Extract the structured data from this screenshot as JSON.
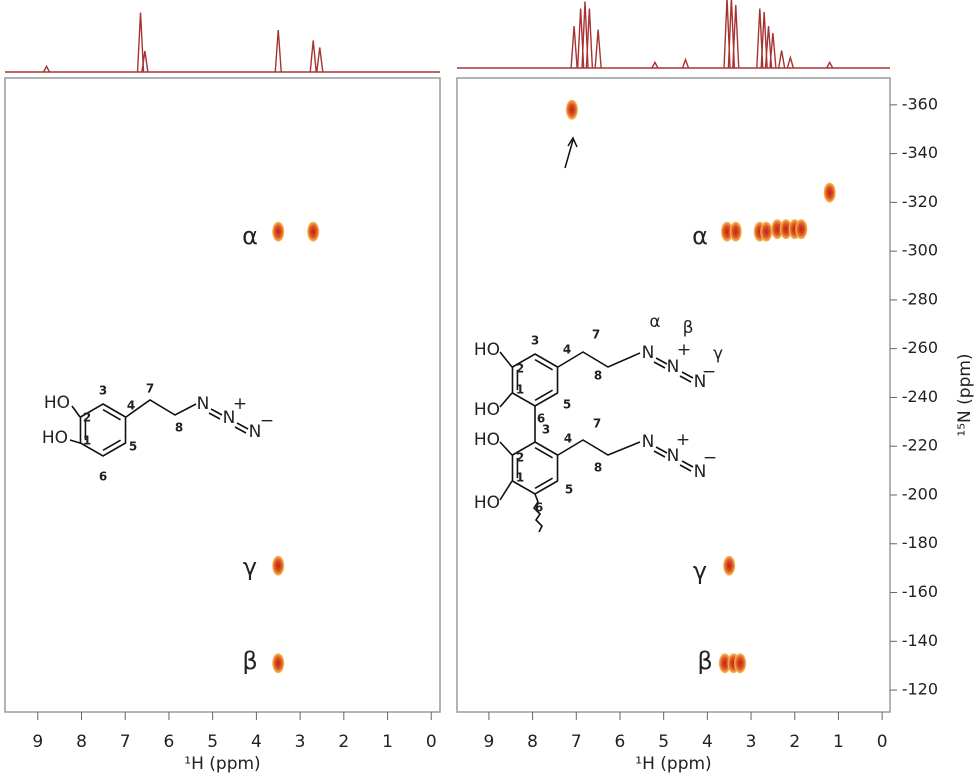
{
  "chart_data": [
    {
      "type": "scatter",
      "xlabel": "¹H (ppm)",
      "xlim": [
        9.75,
        -0.2
      ],
      "xticks": [
        9,
        8,
        7,
        6,
        5,
        4,
        3,
        2,
        1,
        0
      ],
      "ylim": [
        -111,
        -371
      ],
      "x": [
        3.5,
        2.7,
        3.5,
        3.5
      ],
      "y": [
        -308,
        -308,
        -171,
        -131
      ],
      "annotations": [
        "α",
        "γ",
        "β"
      ],
      "projection": {
        "x": [
          8.8,
          6.65,
          6.55,
          3.5,
          2.7,
          2.55
        ],
        "values": [
          8,
          85,
          30,
          60,
          45,
          35
        ]
      },
      "structure": [
        "HO",
        "HO",
        "1",
        "2",
        "3",
        "4",
        "5",
        "6",
        "7",
        "8",
        "N",
        "N",
        "N",
        "+",
        "−"
      ]
    },
    {
      "type": "scatter",
      "xlabel": "¹H (ppm)",
      "ylabel": "¹⁵N (ppm)",
      "xlim": [
        9.73,
        -0.18
      ],
      "xticks": [
        9,
        8,
        7,
        6,
        5,
        4,
        3,
        2,
        1,
        0
      ],
      "ylim": [
        -111,
        -371
      ],
      "yticks": [
        -120,
        -140,
        -160,
        -180,
        -200,
        -220,
        -240,
        -260,
        -280,
        -300,
        -320,
        -340,
        -360
      ],
      "x": [
        7.1,
        3.55,
        3.35,
        2.8,
        2.65,
        2.4,
        2.2,
        2.0,
        1.85,
        1.2,
        3.5,
        3.6,
        3.4,
        3.25
      ],
      "y": [
        -358,
        -308,
        -308,
        -308,
        -308,
        -309,
        -309,
        -309,
        -309,
        -324,
        -171,
        -131,
        -131,
        -131
      ],
      "annotations": [
        "α",
        "γ",
        "β"
      ],
      "projection": {
        "x": [
          7.05,
          6.9,
          6.8,
          6.7,
          6.5,
          5.2,
          4.5,
          3.55,
          3.45,
          3.35,
          2.8,
          2.7,
          2.6,
          2.5,
          2.3,
          2.1,
          1.2
        ],
        "values": [
          60,
          85,
          95,
          85,
          55,
          8,
          12,
          100,
          100,
          90,
          85,
          80,
          60,
          50,
          25,
          15,
          8
        ]
      },
      "structure": [
        "HO",
        "HO",
        "1",
        "2",
        "3",
        "4",
        "5",
        "6",
        "7",
        "8",
        "N",
        "N",
        "N",
        "α",
        "β",
        "+",
        "−",
        "γ",
        "HO",
        "HO",
        "1",
        "2",
        "3",
        "4",
        "5",
        "6",
        "7",
        "8",
        "N",
        "N",
        "N",
        "+",
        "−"
      ]
    }
  ]
}
